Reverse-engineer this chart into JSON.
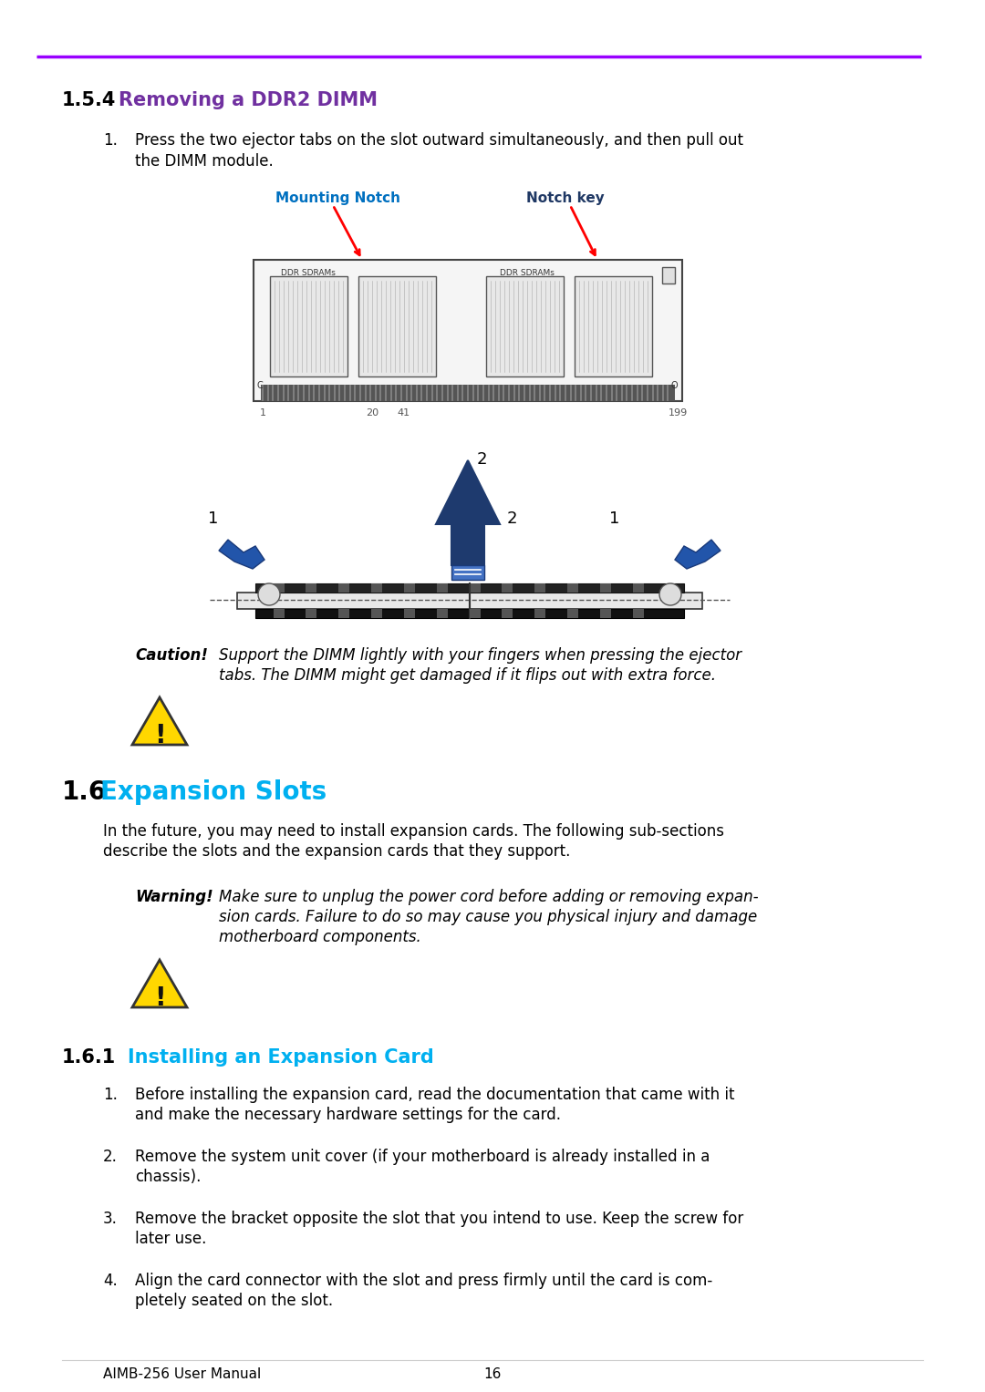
{
  "bg_color": "#ffffff",
  "top_line_color": "#9900ff",
  "section_154_num": "1.5.4",
  "section_154_title": "Removing a DDR2 DIMM",
  "section_16_num": "1.6",
  "section_16_title": "Expansion Slots",
  "section_161_num": "1.6.1",
  "section_161_title": "Installing an Expansion Card",
  "heading_color": "#7030a0",
  "heading_16_color": "#00b0f0",
  "heading_161_color": "#00b0f0",
  "body_color": "#000000",
  "footer_text": "AIMB-256 User Manual",
  "footer_page": "16",
  "step1_text_line1": "Press the two ejector tabs on the slot outward simultaneously, and then pull out",
  "step1_text_line2": "the DIMM module.",
  "section16_body_line1": "In the future, you may need to install expansion cards. The following sub-sections",
  "section16_body_line2": "describe the slots and the expansion cards that they support.",
  "caution_text_line1": "Support the DIMM lightly with your fingers when pressing the ejector",
  "caution_text_line2": "tabs. The DIMM might get damaged if it flips out with extra force.",
  "warning_text_line1": "Make sure to unplug the power cord before adding or removing expan-",
  "warning_text_line2": "sion cards. Failure to do so may cause you physical injury and damage",
  "warning_text_line3": "motherboard components.",
  "step161_1_line1": "Before installing the expansion card, read the documentation that came with it",
  "step161_1_line2": "and make the necessary hardware settings for the card.",
  "step161_2_line1": "Remove the system unit cover (if your motherboard is already installed in a",
  "step161_2_line2": "chassis).",
  "step161_3_line1": "Remove the bracket opposite the slot that you intend to use. Keep the screw for",
  "step161_3_line2": "later use.",
  "step161_4_line1": "Align the card connector with the slot and press firmly until the card is com-",
  "step161_4_line2": "pletely seated on the slot.",
  "mounting_notch_label": "Mounting Notch",
  "notch_key_label": "Notch key",
  "label_color_blue": "#0070c0",
  "label_color_navy": "#1f3864",
  "dimm_color": "#1e3a6e",
  "arrow_color": "#1e3a6e"
}
